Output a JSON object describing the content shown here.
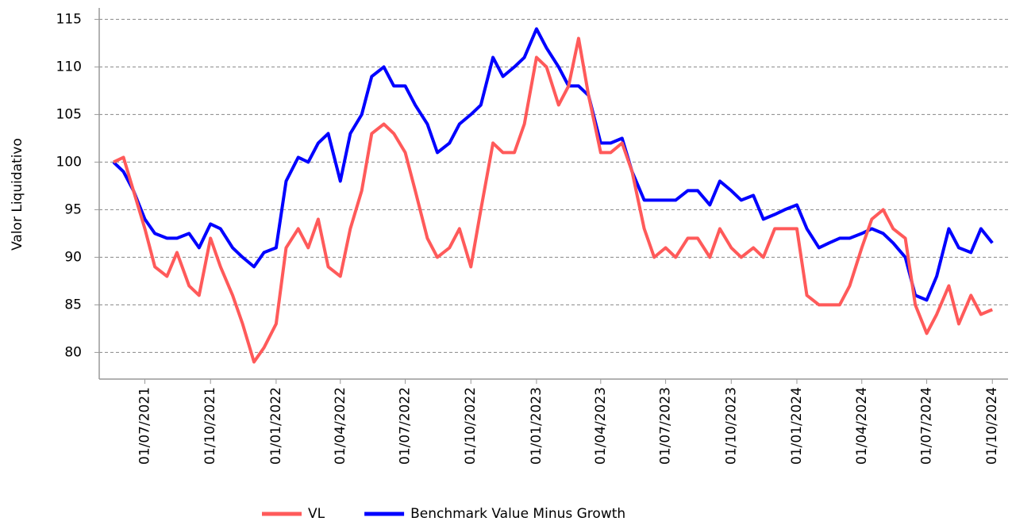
{
  "chart_data": {
    "type": "line",
    "y_label": "Valor Liquidativo",
    "x": [
      "18/05/2021",
      "01/06/2021",
      "15/06/2021",
      "01/07/2021",
      "15/07/2021",
      "01/08/2021",
      "15/08/2021",
      "01/09/2021",
      "15/09/2021",
      "01/10/2021",
      "15/10/2021",
      "01/11/2021",
      "15/11/2021",
      "01/12/2021",
      "15/12/2021",
      "01/01/2022",
      "15/01/2022",
      "01/02/2022",
      "15/02/2022",
      "01/03/2022",
      "15/03/2022",
      "01/04/2022",
      "15/04/2022",
      "01/05/2022",
      "15/05/2022",
      "01/06/2022",
      "15/06/2022",
      "01/07/2022",
      "15/07/2022",
      "01/08/2022",
      "15/08/2022",
      "01/09/2022",
      "15/09/2022",
      "01/10/2022",
      "15/10/2022",
      "01/11/2022",
      "15/11/2022",
      "01/12/2022",
      "15/12/2022",
      "01/01/2023",
      "15/01/2023",
      "01/02/2023",
      "15/02/2023",
      "01/03/2023",
      "15/03/2023",
      "01/04/2023",
      "15/04/2023",
      "01/05/2023",
      "15/05/2023",
      "01/06/2023",
      "15/06/2023",
      "01/07/2023",
      "15/07/2023",
      "01/08/2023",
      "15/08/2023",
      "01/09/2023",
      "15/09/2023",
      "01/10/2023",
      "15/10/2023",
      "01/11/2023",
      "15/11/2023",
      "01/12/2023",
      "15/12/2023",
      "01/01/2024",
      "15/01/2024",
      "01/02/2024",
      "15/02/2024",
      "01/03/2024",
      "15/03/2024",
      "01/04/2024",
      "15/04/2024",
      "01/05/2024",
      "15/05/2024",
      "01/06/2024",
      "15/06/2024",
      "01/07/2024",
      "15/07/2024",
      "01/08/2024",
      "15/08/2024",
      "01/09/2024",
      "15/09/2024",
      "01/10/2024"
    ],
    "series": [
      {
        "name": "Benchmark Value Minus Growth",
        "color": "#0000ff",
        "values": [
          100,
          99,
          97,
          94,
          92.5,
          92,
          92,
          92.5,
          91,
          93.5,
          93,
          91,
          90,
          89,
          90.5,
          91,
          98,
          100.5,
          100,
          102,
          103,
          98,
          103,
          105,
          109,
          110,
          108,
          108,
          106,
          104,
          101,
          102,
          104,
          105,
          106,
          111,
          109,
          110,
          111,
          114,
          112,
          110,
          108,
          108,
          107,
          102,
          102,
          102.5,
          99,
          96,
          96,
          96,
          96,
          97,
          97,
          95.5,
          98,
          97,
          96,
          96.5,
          94,
          94.5,
          95,
          95.5,
          93,
          91,
          91.5,
          92,
          92,
          92.5,
          93,
          92.5,
          91.5,
          90,
          86,
          85.5,
          88,
          93,
          91,
          90.5,
          93,
          91.5
        ]
      },
      {
        "name": "VL",
        "color": "#ff5a5a",
        "values": [
          100,
          100.5,
          97,
          93,
          89,
          88,
          90.5,
          87,
          86,
          92,
          89,
          86,
          83,
          79,
          80.5,
          83,
          91,
          93,
          91,
          94,
          89,
          88,
          93,
          97,
          103,
          104,
          103,
          101,
          97,
          92,
          90,
          91,
          93,
          89,
          95,
          102,
          101,
          101,
          104,
          111,
          110,
          106,
          108,
          113,
          107,
          101,
          101,
          102,
          99,
          93,
          90,
          91,
          90,
          92,
          92,
          90,
          93,
          91,
          90,
          91,
          90,
          93,
          93,
          93,
          86,
          85,
          85,
          85,
          87,
          91,
          94,
          95,
          93,
          92,
          85,
          82,
          84,
          87,
          83,
          86,
          84,
          84.5
        ]
      }
    ],
    "legend_order": [
      "VL",
      "Benchmark Value Minus Growth"
    ],
    "xlim": [
      "28/04/2021",
      "23/10/2024"
    ],
    "xticks": [
      "01/07/2021",
      "01/10/2021",
      "01/01/2022",
      "01/04/2022",
      "01/07/2022",
      "01/10/2022",
      "01/01/2023",
      "01/04/2023",
      "01/07/2023",
      "01/10/2023",
      "01/01/2024",
      "01/04/2024",
      "01/07/2024",
      "01/10/2024"
    ],
    "ylim": [
      77.2,
      116.2
    ],
    "yticks": [
      80,
      85,
      90,
      95,
      100,
      105,
      110,
      115
    ],
    "grid": true
  }
}
